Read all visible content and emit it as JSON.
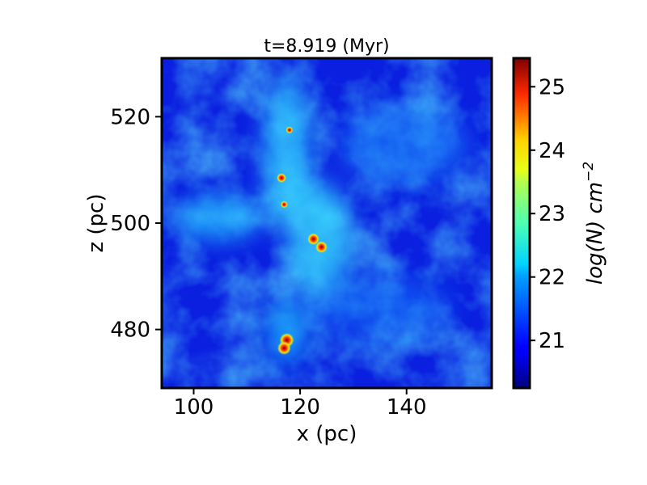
{
  "chart_data": {
    "type": "heatmap",
    "title": "t=8.919 (Myr)",
    "xlabel": "x (pc)",
    "ylabel": "z (pc)",
    "xlim": [
      94,
      156
    ],
    "ylim": [
      469,
      531
    ],
    "x_ticks": [
      100,
      120,
      140
    ],
    "y_ticks": [
      480,
      500,
      520
    ],
    "colorbar": {
      "label": "log(N) cm^-2",
      "label_main": "log(N) cm",
      "label_sup": "−2",
      "range": [
        20.25,
        25.45
      ],
      "ticks": [
        21,
        22,
        23,
        24,
        25
      ],
      "colormap": "jet"
    },
    "dense_cores": [
      {
        "x": 117.5,
        "z": 478.0,
        "logN": 25.0
      },
      {
        "x": 117.0,
        "z": 476.5,
        "logN": 24.8
      },
      {
        "x": 122.5,
        "z": 497.0,
        "logN": 24.5
      },
      {
        "x": 124.0,
        "z": 495.5,
        "logN": 24.5
      },
      {
        "x": 116.5,
        "z": 508.5,
        "logN": 24.0
      },
      {
        "x": 117.0,
        "z": 503.5,
        "logN": 23.5
      },
      {
        "x": 118.0,
        "z": 517.5,
        "logN": 23.5
      }
    ],
    "grid": false,
    "legend": "none"
  }
}
